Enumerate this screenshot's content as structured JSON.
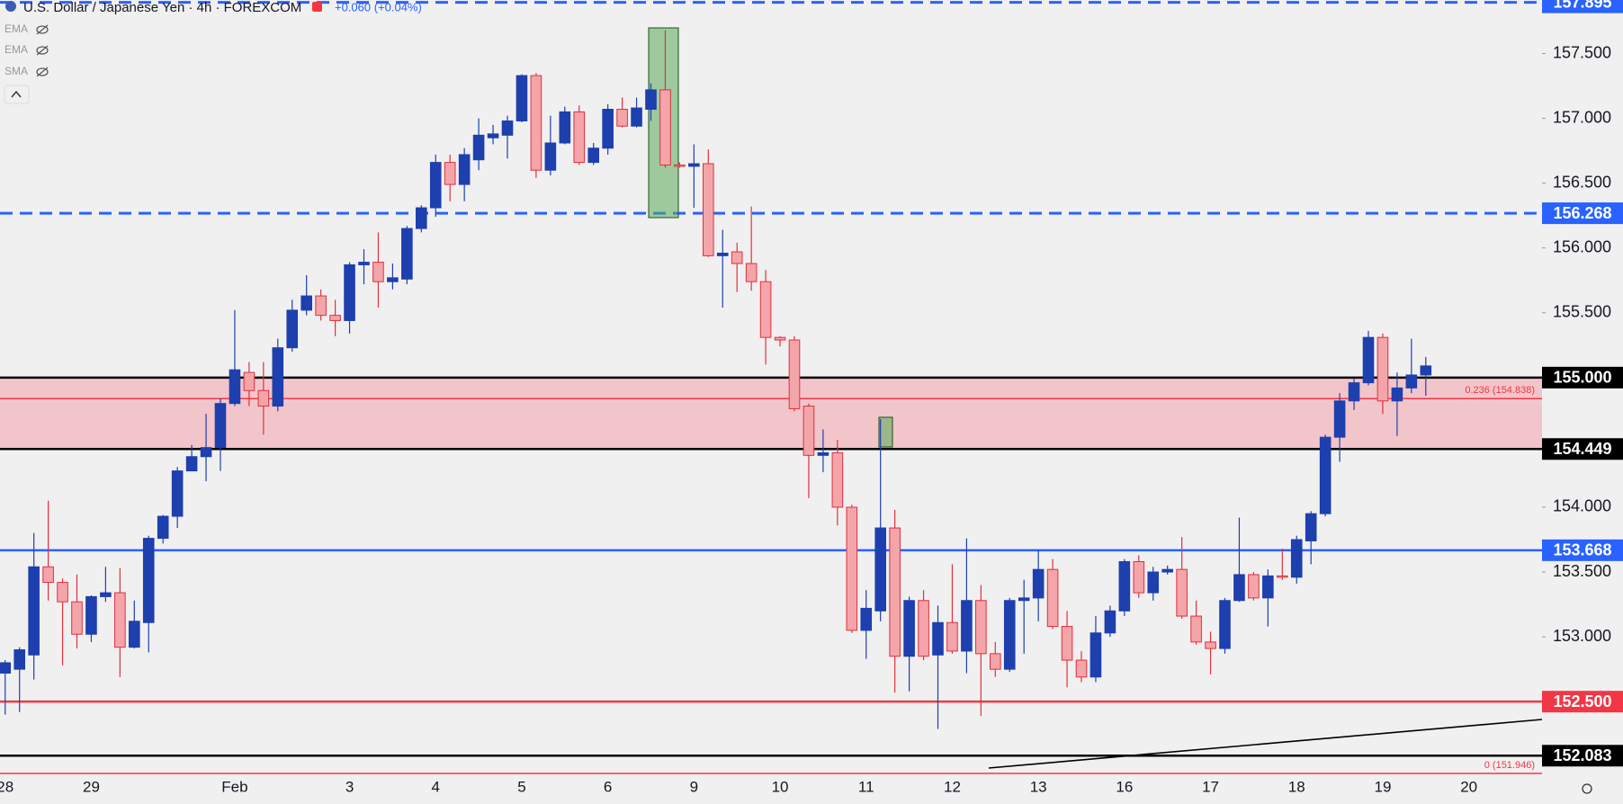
{
  "chart_data": {
    "type": "candlestick",
    "title": "U.S. Dollar / Japanese Yen · 4h · FOREXCOM",
    "change": "+0.060 (+0.04%)",
    "indicators": [
      "EMA",
      "EMA",
      "SMA"
    ],
    "categories": [
      "28",
      null,
      null,
      null,
      null,
      null,
      "29",
      null,
      null,
      null,
      null,
      null,
      null,
      null,
      null,
      null,
      "Feb",
      null,
      null,
      null,
      null,
      null,
      null,
      null,
      "3",
      null,
      null,
      null,
      null,
      null,
      "4",
      null,
      null,
      null,
      null,
      null,
      "5",
      null,
      null,
      null,
      null,
      null,
      "6",
      null,
      null,
      null,
      null,
      null,
      "9",
      null,
      null,
      null,
      null,
      null,
      "10",
      null,
      null,
      null,
      null,
      null,
      "11",
      null,
      null,
      null,
      null,
      null,
      "12",
      null,
      null,
      null,
      null,
      null,
      "13",
      null,
      null,
      null,
      null,
      null,
      "16",
      null,
      null,
      null,
      null,
      null,
      "17",
      null,
      null,
      null,
      null,
      null,
      "18",
      null,
      null,
      null,
      null,
      null,
      "19",
      null,
      null,
      null,
      null,
      null,
      "20",
      null,
      null,
      null,
      null
    ],
    "open": [
      152.72,
      152.75,
      152.86,
      153.54,
      153.42,
      153.27,
      153.02,
      153.31,
      153.34,
      152.92,
      153.11,
      153.76,
      153.93,
      154.28,
      154.39,
      154.46,
      154.8,
      155.04,
      154.9,
      154.78,
      155.23,
      155.52,
      155.63,
      155.48,
      155.44,
      155.87,
      155.89,
      155.74,
      155.76,
      156.15,
      156.31,
      156.66,
      156.49,
      156.68,
      156.85,
      156.87,
      156.98,
      157.33,
      156.6,
      156.81,
      157.05,
      156.66,
      156.77,
      157.07,
      156.94,
      157.07,
      157.22,
      156.64,
      156.63,
      156.65,
      155.94,
      155.97,
      155.88,
      155.74,
      155.31,
      155.29,
      154.78,
      154.4,
      154.42,
      154.0,
      153.05,
      153.2,
      153.84,
      152.85,
      153.28,
      152.86,
      153.11,
      152.89,
      153.28,
      152.87,
      152.75,
      153.28,
      153.3,
      153.52,
      153.08,
      152.82,
      152.69,
      153.03,
      153.2,
      153.58,
      153.34,
      153.5,
      153.52,
      153.16,
      152.96,
      152.91,
      153.28,
      153.48,
      153.3,
      153.47,
      153.46,
      153.74,
      153.95,
      154.54,
      154.82,
      154.96,
      155.31,
      154.82,
      154.92,
      155.02,
      null,
      null,
      null,
      null,
      null,
      null,
      null
    ],
    "high": [
      152.82,
      152.92,
      153.8,
      154.05,
      153.45,
      153.48,
      153.32,
      153.54,
      153.53,
      153.28,
      153.78,
      153.94,
      154.31,
      154.48,
      154.72,
      154.84,
      155.52,
      155.12,
      155.12,
      155.3,
      155.6,
      155.79,
      155.68,
      155.6,
      155.89,
      155.99,
      156.12,
      155.88,
      156.17,
      156.33,
      156.72,
      156.72,
      156.77,
      157.0,
      156.95,
      157.02,
      157.34,
      157.35,
      157.02,
      157.09,
      157.1,
      156.81,
      157.11,
      157.16,
      157.16,
      157.27,
      157.68,
      156.66,
      156.8,
      156.76,
      156.14,
      156.04,
      156.32,
      155.83,
      155.32,
      155.32,
      154.8,
      154.6,
      154.52,
      154.02,
      153.36,
      154.68,
      153.98,
      153.31,
      153.36,
      153.24,
      153.56,
      153.76,
      153.4,
      152.96,
      153.3,
      153.44,
      153.67,
      153.6,
      153.2,
      152.89,
      153.16,
      153.24,
      153.6,
      153.63,
      153.54,
      153.55,
      153.77,
      153.28,
      153.04,
      153.3,
      153.92,
      153.5,
      153.52,
      153.68,
      153.78,
      153.97,
      154.56,
      154.88,
      154.99,
      155.36,
      155.34,
      155.04,
      155.3,
      155.16,
      null,
      null,
      null,
      null,
      null,
      null,
      null
    ],
    "low": [
      152.4,
      152.42,
      152.67,
      153.28,
      152.78,
      152.91,
      152.96,
      153.27,
      152.69,
      152.91,
      152.88,
      153.72,
      153.84,
      154.28,
      154.2,
      154.28,
      154.78,
      154.78,
      154.56,
      154.74,
      155.2,
      155.48,
      155.44,
      155.32,
      155.34,
      155.72,
      155.54,
      155.68,
      155.72,
      156.12,
      156.24,
      156.36,
      156.36,
      156.6,
      156.8,
      156.69,
      156.97,
      156.54,
      156.56,
      156.8,
      156.64,
      156.64,
      156.72,
      156.93,
      156.93,
      156.98,
      156.62,
      156.62,
      156.31,
      155.93,
      155.54,
      155.66,
      155.67,
      155.1,
      155.24,
      154.74,
      154.07,
      154.27,
      153.86,
      153.03,
      152.83,
      153.12,
      152.57,
      152.58,
      152.82,
      152.29,
      152.87,
      152.72,
      152.39,
      152.69,
      152.73,
      152.87,
      153.12,
      153.06,
      152.61,
      152.65,
      152.65,
      153.0,
      153.16,
      153.3,
      153.28,
      153.48,
      153.14,
      152.94,
      152.71,
      152.87,
      153.27,
      153.28,
      153.08,
      153.44,
      153.41,
      153.56,
      153.93,
      154.35,
      154.75,
      154.94,
      154.72,
      154.55,
      154.88,
      154.86,
      null,
      null,
      null,
      null,
      null,
      null,
      null
    ],
    "close": [
      152.8,
      152.9,
      153.54,
      153.42,
      153.27,
      153.02,
      153.31,
      153.34,
      152.92,
      153.12,
      153.76,
      153.93,
      154.28,
      154.39,
      154.46,
      154.8,
      155.06,
      154.9,
      154.78,
      155.23,
      155.52,
      155.63,
      155.48,
      155.44,
      155.87,
      155.89,
      155.74,
      155.77,
      156.15,
      156.31,
      156.66,
      156.49,
      156.72,
      156.87,
      156.88,
      156.98,
      157.33,
      156.6,
      156.81,
      157.05,
      156.66,
      156.77,
      157.07,
      156.94,
      157.08,
      157.22,
      156.64,
      156.63,
      156.65,
      155.94,
      155.96,
      155.88,
      155.74,
      155.31,
      155.29,
      154.76,
      154.4,
      154.42,
      154.0,
      153.05,
      153.22,
      153.84,
      152.85,
      153.28,
      152.85,
      153.11,
      152.89,
      153.28,
      152.87,
      152.75,
      153.28,
      153.3,
      153.52,
      153.08,
      152.82,
      152.69,
      153.03,
      153.2,
      153.58,
      153.34,
      153.5,
      153.52,
      153.16,
      152.96,
      152.91,
      153.28,
      153.48,
      153.3,
      153.47,
      153.46,
      153.75,
      153.95,
      154.54,
      154.82,
      154.96,
      155.31,
      154.82,
      154.92,
      155.02,
      155.09,
      null,
      null,
      null,
      null,
      null,
      null,
      null
    ],
    "up_color": "#1e3fae",
    "down_color": "#f4a5a9",
    "down_border": "#e0303e",
    "ylim": [
      151.967,
      157.913
    ],
    "yticks": [
      {
        "value": 157.5,
        "label": "157.500"
      },
      {
        "value": 157,
        "label": "157.000"
      },
      {
        "value": 156.5,
        "label": "156.500"
      },
      {
        "value": 156,
        "label": "156.000"
      },
      {
        "value": 155.5,
        "label": "155.500"
      },
      {
        "value": 154,
        "label": "154.000"
      },
      {
        "value": 153.5,
        "label": "153.500"
      },
      {
        "value": 153,
        "label": "153.000"
      }
    ],
    "zone": {
      "from": 154.449,
      "to": 155.0,
      "color": "#f2c5ca"
    },
    "levels": [
      {
        "value": 157.895,
        "label": "157.895",
        "color": "#2962ff",
        "dashed": true
      },
      {
        "value": 156.268,
        "label": "156.268",
        "color": "#2962ff",
        "dashed": true
      },
      {
        "value": 155.0,
        "label": "155.000",
        "color": "#000000",
        "dashed": false
      },
      {
        "value": 154.449,
        "label": "154.449",
        "color": "#000000",
        "dashed": false
      },
      {
        "value": 153.668,
        "label": "153.668",
        "color": "#2962ff",
        "dashed": false
      },
      {
        "value": 152.5,
        "label": "152.500",
        "color": "#f23645",
        "dashed": false
      },
      {
        "value": 152.083,
        "label": "152.083",
        "color": "#000000",
        "dashed": false
      }
    ],
    "fib": [
      {
        "value": 154.838,
        "label": "0.236 (154.838)",
        "color": "#f23645"
      },
      {
        "value": 151.946,
        "label": "0 (151.946)",
        "color": "#f23645"
      }
    ]
  }
}
